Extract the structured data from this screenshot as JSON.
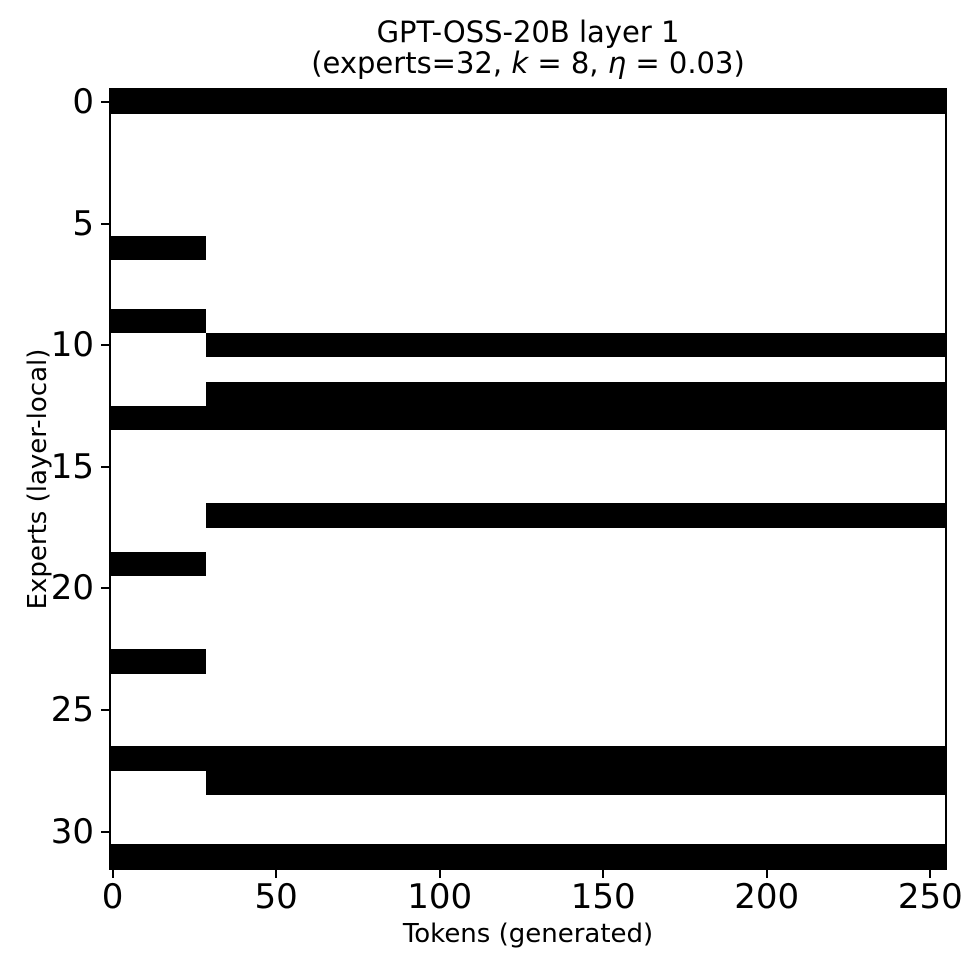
{
  "figure": {
    "title": "GPT-OSS-20B layer 1",
    "subtitle": {
      "pre": "(experts=32, ",
      "k_var": "k",
      "k_rest": " = 8, ",
      "eta_var": "η",
      "eta_rest": " = 0.03)"
    },
    "xlabel": "Tokens (generated)",
    "ylabel": "Experts (layer-local)"
  },
  "chart_data": {
    "type": "heatmap",
    "title": "GPT-OSS-20B layer 1 (experts=32, k = 8, η = 0.03)",
    "xlabel": "Tokens (generated)",
    "ylabel": "Experts (layer-local)",
    "n_experts": 32,
    "n_tokens": 255,
    "top_k": 8,
    "xlim": [
      -0.5,
      254.5
    ],
    "ylim": [
      31.5,
      -0.5
    ],
    "x_ticks": [
      0,
      50,
      100,
      150,
      200,
      250
    ],
    "y_ticks": [
      0,
      5,
      10,
      15,
      20,
      25,
      30
    ],
    "grid": false,
    "legend": "none",
    "colors": {
      "active_cell": "#000000",
      "inactive_cell": "#ffffff",
      "axes": "#000000"
    },
    "active_segments": [
      {
        "expert": 0,
        "token_start": 0,
        "token_end": 254
      },
      {
        "expert": 6,
        "token_start": 0,
        "token_end": 28
      },
      {
        "expert": 9,
        "token_start": 0,
        "token_end": 28
      },
      {
        "expert": 10,
        "token_start": 29,
        "token_end": 254
      },
      {
        "expert": 12,
        "token_start": 29,
        "token_end": 254
      },
      {
        "expert": 13,
        "token_start": 0,
        "token_end": 254
      },
      {
        "expert": 17,
        "token_start": 29,
        "token_end": 254
      },
      {
        "expert": 19,
        "token_start": 0,
        "token_end": 28
      },
      {
        "expert": 23,
        "token_start": 0,
        "token_end": 28
      },
      {
        "expert": 27,
        "token_start": 0,
        "token_end": 254
      },
      {
        "expert": 28,
        "token_start": 29,
        "token_end": 254
      },
      {
        "expert": 31,
        "token_start": 0,
        "token_end": 254
      }
    ]
  }
}
